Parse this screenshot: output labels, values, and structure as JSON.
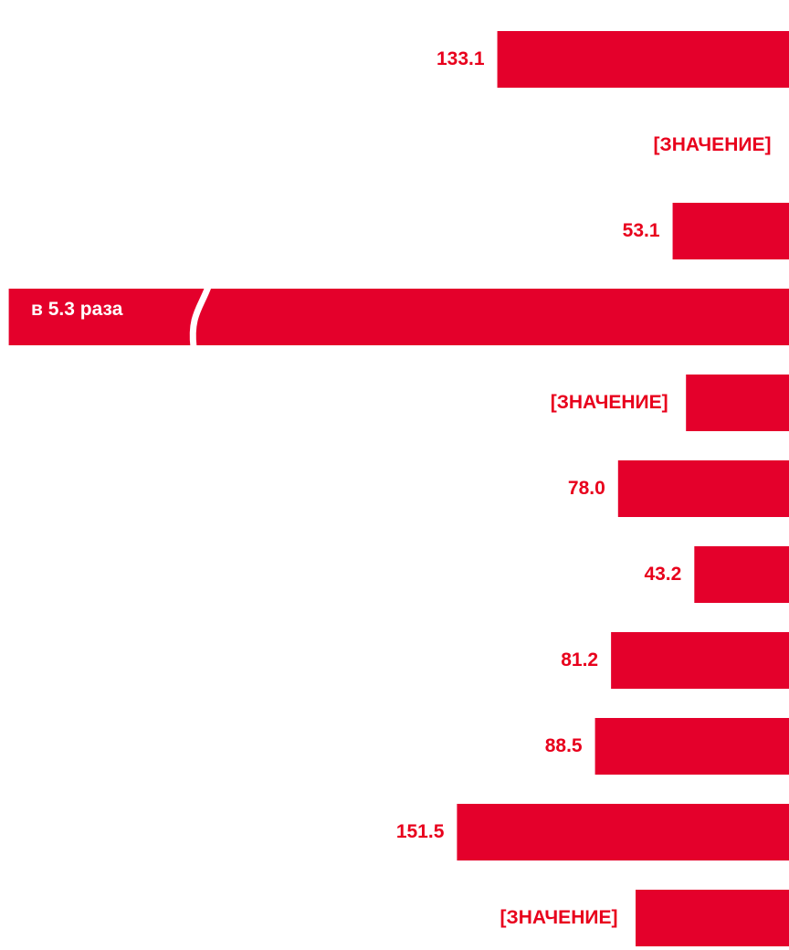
{
  "chart_data": {
    "type": "barh",
    "values": [
      133.1,
      0,
      53.1,
      356,
      47,
      78.0,
      43.2,
      81.2,
      88.5,
      151.5,
      70
    ],
    "value_labels": [
      "133.1",
      "[ЗНАЧЕНИЕ]",
      "53.1",
      null,
      "[ЗНАЧЕНИЕ]",
      "78.0",
      "43.2",
      "81.2",
      "88.5",
      "151.5",
      "[ЗНАЧЕНИЕ]"
    ],
    "annotations": [
      {
        "text": "в 5.3 раза",
        "index": 3
      }
    ],
    "xlim": [
      0,
      360
    ],
    "color": "#e4002b",
    "label_color": "#e8001c"
  }
}
